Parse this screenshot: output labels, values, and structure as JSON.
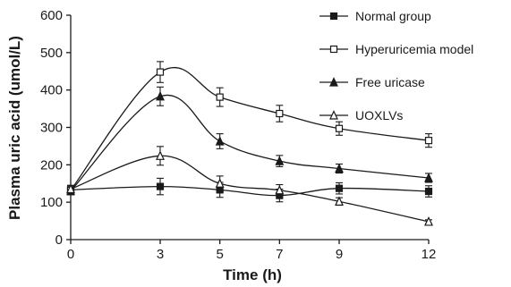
{
  "chart_data": {
    "type": "line",
    "title": "",
    "xlabel": "Time (h)",
    "ylabel": "Plasma uric acid (umol/L)",
    "x": [
      0,
      3,
      5,
      7,
      9,
      12
    ],
    "x_tick_labels": [
      "0",
      "3",
      "5",
      "7",
      "9",
      "12"
    ],
    "xlim": [
      0,
      12
    ],
    "ylim": [
      0,
      600
    ],
    "y_ticks": [
      0,
      100,
      200,
      300,
      400,
      500,
      600
    ],
    "y_tick_labels": [
      "0",
      "100",
      "200",
      "300",
      "400",
      "500",
      "600"
    ],
    "grid": false,
    "legend_position": "top-right",
    "series": [
      {
        "name": "Normal group",
        "marker": "filled-square",
        "values": [
          133,
          142,
          133,
          118,
          137,
          129
        ],
        "errors": [
          12,
          22,
          20,
          17,
          15,
          15
        ]
      },
      {
        "name": "Hyperuricemia model",
        "marker": "open-square",
        "values": [
          132,
          448,
          381,
          337,
          297,
          265
        ],
        "errors": [
          12,
          28,
          25,
          22,
          18,
          18
        ]
      },
      {
        "name": "Free uricase",
        "marker": "filled-triangle",
        "values": [
          130,
          383,
          263,
          210,
          190,
          165
        ],
        "errors": [
          10,
          25,
          20,
          15,
          12,
          12
        ]
      },
      {
        "name": "UOXLVs",
        "marker": "open-triangle",
        "values": [
          135,
          224,
          150,
          132,
          102,
          48
        ],
        "errors": [
          10,
          25,
          20,
          15,
          10,
          5
        ]
      }
    ]
  }
}
